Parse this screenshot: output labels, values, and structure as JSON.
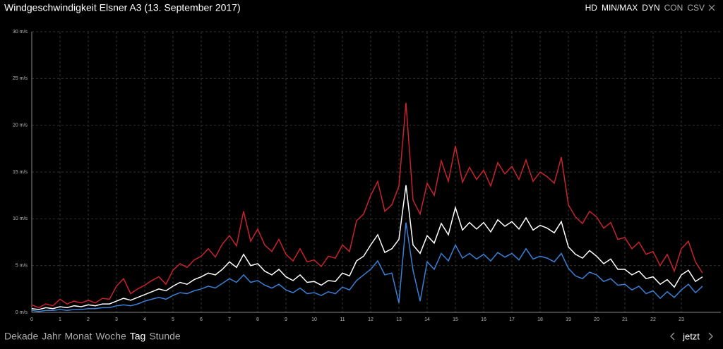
{
  "chart_data": {
    "type": "line",
    "title": "Windgeschwindigkeit Elsner A3 (13. September 2017)",
    "x": [
      0,
      0.25,
      0.5,
      0.75,
      1,
      1.25,
      1.5,
      1.75,
      2,
      2.25,
      2.5,
      2.75,
      3,
      3.25,
      3.5,
      3.75,
      4,
      4.25,
      4.5,
      4.75,
      5,
      5.25,
      5.5,
      5.75,
      6,
      6.25,
      6.5,
      6.75,
      7,
      7.25,
      7.5,
      7.75,
      8,
      8.25,
      8.5,
      8.75,
      9,
      9.25,
      9.5,
      9.75,
      10,
      10.25,
      10.5,
      10.75,
      11,
      11.25,
      11.5,
      11.75,
      12,
      12.25,
      12.5,
      12.75,
      13,
      13.25,
      13.5,
      13.75,
      14,
      14.25,
      14.5,
      14.75,
      15,
      15.25,
      15.5,
      15.75,
      16,
      16.25,
      16.5,
      16.75,
      17,
      17.25,
      17.5,
      17.75,
      18,
      18.25,
      18.5,
      18.75,
      19,
      19.25,
      19.5,
      19.75,
      20,
      20.25,
      20.5,
      20.75,
      21,
      21.25,
      21.5,
      21.75,
      22,
      22.25,
      22.5,
      22.75,
      23,
      23.25,
      23.5,
      23.75
    ],
    "series": [
      {
        "color": "#c8232b",
        "values": [
          0.8,
          0.5,
          0.9,
          0.7,
          1.4,
          0.9,
          1.2,
          1.0,
          1.3,
          1.0,
          1.5,
          1.4,
          2.8,
          3.6,
          2.0,
          2.5,
          2.9,
          3.4,
          3.8,
          3.0,
          4.5,
          5.2,
          4.8,
          5.6,
          6.0,
          6.8,
          5.9,
          7.3,
          8.2,
          7.1,
          10.8,
          7.6,
          8.9,
          7.2,
          6.5,
          7.8,
          6.2,
          5.5,
          6.8,
          5.4,
          5.6,
          4.9,
          6.0,
          5.8,
          7.2,
          6.5,
          9.8,
          10.5,
          12.5,
          14.0,
          10.8,
          11.5,
          13.5,
          22.4,
          12.0,
          10.5,
          13.8,
          12.5,
          16.2,
          14.0,
          17.8,
          13.9,
          15.5,
          14.2,
          15.2,
          13.5,
          16.0,
          14.8,
          15.6,
          14.2,
          16.3,
          14.0,
          15.0,
          14.5,
          13.8,
          16.6,
          11.5,
          10.2,
          9.5,
          10.8,
          10.2,
          9.0,
          9.6,
          7.8,
          8.0,
          6.8,
          7.5,
          6.2,
          6.5,
          5.0,
          6.2,
          4.4,
          6.8,
          7.6,
          5.4,
          4.2
        ]
      },
      {
        "color": "#ffffff",
        "values": [
          0.4,
          0.3,
          0.5,
          0.4,
          0.6,
          0.5,
          0.7,
          0.6,
          0.8,
          0.7,
          0.9,
          0.9,
          1.2,
          1.5,
          1.3,
          1.6,
          1.9,
          2.2,
          2.5,
          2.3,
          2.8,
          3.2,
          3.0,
          3.5,
          3.8,
          4.2,
          4.0,
          4.6,
          5.4,
          4.8,
          6.2,
          5.0,
          5.2,
          4.4,
          4.0,
          4.6,
          3.8,
          3.4,
          4.0,
          3.2,
          3.3,
          2.9,
          3.4,
          3.3,
          4.2,
          3.9,
          5.5,
          6.0,
          7.2,
          8.3,
          6.4,
          6.8,
          7.8,
          13.6,
          7.2,
          6.3,
          8.2,
          7.4,
          9.5,
          8.3,
          11.2,
          8.8,
          9.6,
          8.9,
          9.6,
          8.6,
          9.9,
          9.2,
          9.7,
          8.9,
          10.1,
          8.8,
          9.3,
          9.0,
          8.5,
          9.7,
          7.0,
          6.2,
          5.8,
          6.6,
          6.0,
          5.2,
          5.7,
          4.6,
          4.6,
          4.0,
          4.4,
          3.6,
          3.8,
          3.0,
          3.5,
          2.7,
          4.0,
          4.5,
          3.3,
          3.8
        ]
      },
      {
        "color": "#3a7fd5",
        "values": [
          0.2,
          0.1,
          0.2,
          0.2,
          0.3,
          0.2,
          0.3,
          0.3,
          0.4,
          0.4,
          0.5,
          0.5,
          0.7,
          0.8,
          0.7,
          0.9,
          1.2,
          1.4,
          1.6,
          1.4,
          1.8,
          2.1,
          2.0,
          2.3,
          2.5,
          2.8,
          2.6,
          3.1,
          3.6,
          3.2,
          4.0,
          3.2,
          3.4,
          2.9,
          2.6,
          3.0,
          2.4,
          2.1,
          2.6,
          2.0,
          2.1,
          1.8,
          2.2,
          2.0,
          2.7,
          2.4,
          3.4,
          4.0,
          4.6,
          5.5,
          4.0,
          4.2,
          1.0,
          9.6,
          4.5,
          1.2,
          5.4,
          4.6,
          6.3,
          5.5,
          7.2,
          5.8,
          6.3,
          5.7,
          6.2,
          5.5,
          6.4,
          5.9,
          6.3,
          5.6,
          6.8,
          5.7,
          6.0,
          5.8,
          5.4,
          6.3,
          4.7,
          3.9,
          3.6,
          4.3,
          4.0,
          3.3,
          3.6,
          2.9,
          3.0,
          2.4,
          2.8,
          2.0,
          2.3,
          1.5,
          2.2,
          1.6,
          2.4,
          3.0,
          2.1,
          2.8
        ]
      }
    ],
    "xlim": [
      0,
      24.4
    ],
    "xticks": [
      0,
      1,
      2,
      3,
      4,
      5,
      6,
      7,
      8,
      9,
      10,
      11,
      12,
      13,
      14,
      15,
      16,
      17,
      18,
      19,
      20,
      21,
      22,
      23
    ],
    "ylim": [
      0,
      30
    ],
    "yticks": [
      {
        "value": 0,
        "label": "0 m/s"
      },
      {
        "value": 5,
        "label": "5 m/s"
      },
      {
        "value": 10,
        "label": "10 m/s"
      },
      {
        "value": 15,
        "label": "15 m/s"
      },
      {
        "value": 20,
        "label": "20 m/s"
      },
      {
        "value": 25,
        "label": "25 m/s"
      },
      {
        "value": 30,
        "label": "30 m/s"
      }
    ],
    "grid": true
  },
  "toolbar": [
    "HD",
    "MIN/MAX",
    "DYN",
    "CON",
    "CSV"
  ],
  "navigation": {
    "ranges": [
      "Dekade",
      "Jahr",
      "Monat",
      "Woche",
      "Tag",
      "Stunde"
    ],
    "now": "jetzt"
  }
}
